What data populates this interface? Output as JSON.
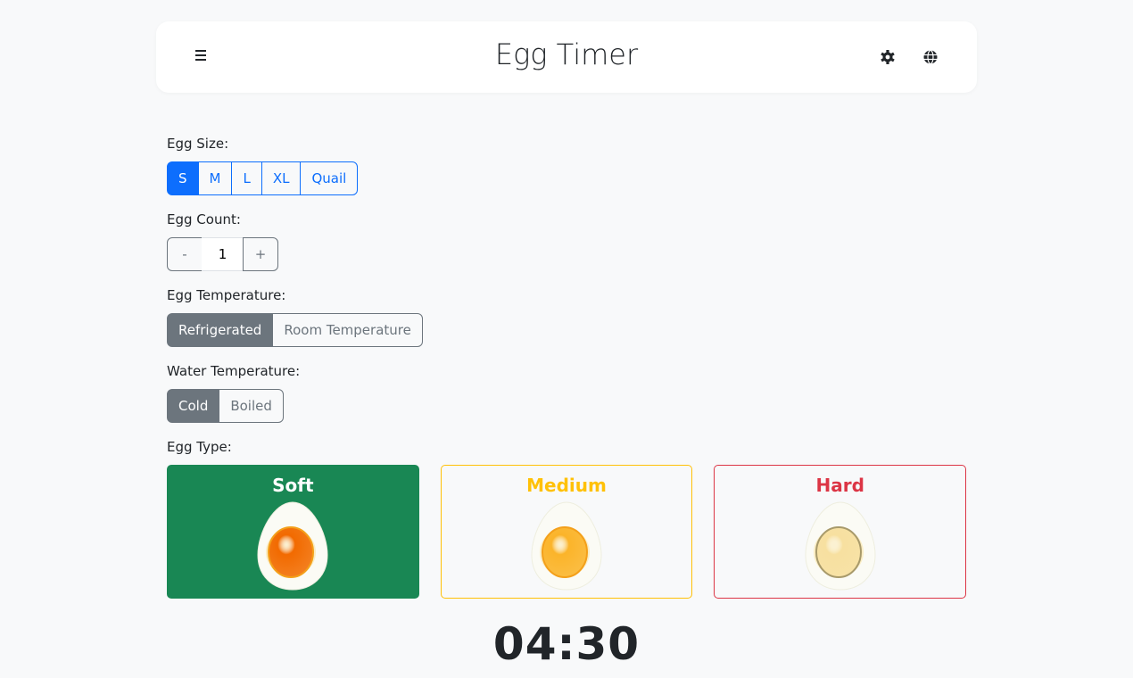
{
  "header": {
    "title": "Egg Timer",
    "menu_icon": "hamburger-menu-icon",
    "settings_icon": "gear-icon",
    "language_icon": "globe-icon"
  },
  "egg_size": {
    "label": "Egg Size:",
    "options": [
      "S",
      "M",
      "L",
      "XL",
      "Quail"
    ],
    "selected": "S"
  },
  "egg_count": {
    "label": "Egg Count:",
    "decrement": "-",
    "value": "1",
    "increment": "+"
  },
  "egg_temperature": {
    "label": "Egg Temperature:",
    "options": [
      "Refrigerated",
      "Room Temperature"
    ],
    "selected": "Refrigerated"
  },
  "water_temperature": {
    "label": "Water Temperature:",
    "options": [
      "Cold",
      "Boiled"
    ],
    "selected": "Cold"
  },
  "egg_type": {
    "label": "Egg Type:",
    "selected": "Soft",
    "options": [
      {
        "name": "Soft",
        "color": "#198754",
        "yolk": "#f26a00"
      },
      {
        "name": "Medium",
        "color": "#ffc107",
        "yolk": "#fbb42a"
      },
      {
        "name": "Hard",
        "color": "#dc3545",
        "yolk": "#f7e0a0"
      }
    ]
  },
  "timer": {
    "value": "04:30"
  }
}
